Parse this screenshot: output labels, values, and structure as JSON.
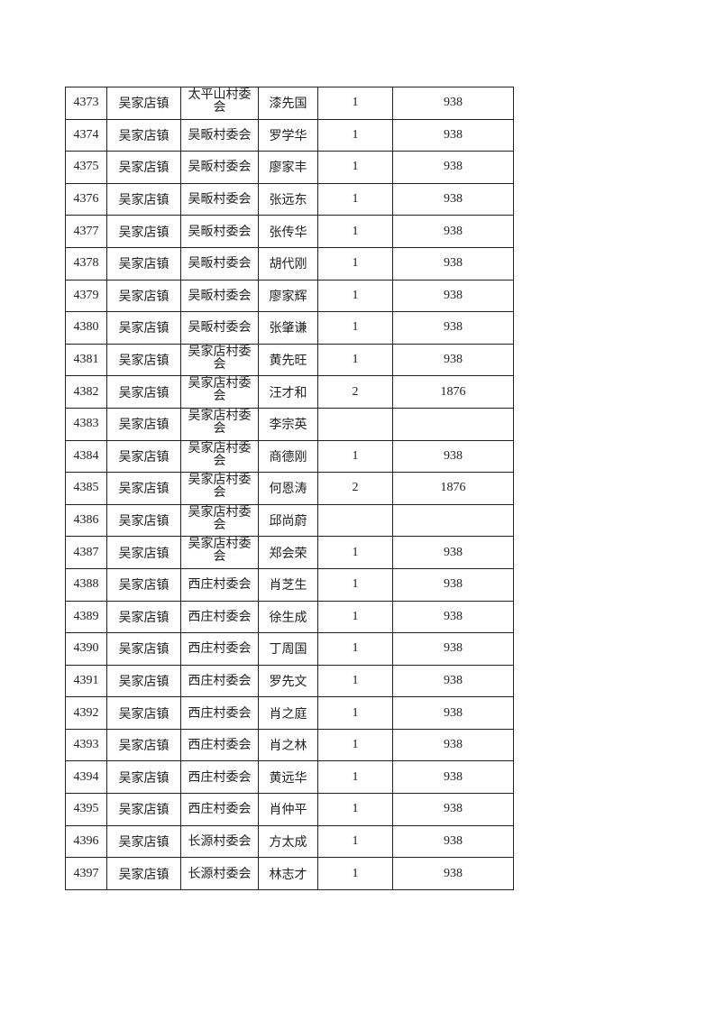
{
  "table": {
    "rows": [
      [
        "4373",
        "吴家店镇",
        "太平山村委会",
        "漆先国",
        "1",
        "938"
      ],
      [
        "4374",
        "吴家店镇",
        "吴畈村委会",
        "罗学华",
        "1",
        "938"
      ],
      [
        "4375",
        "吴家店镇",
        "吴畈村委会",
        "廖家丰",
        "1",
        "938"
      ],
      [
        "4376",
        "吴家店镇",
        "吴畈村委会",
        "张远东",
        "1",
        "938"
      ],
      [
        "4377",
        "吴家店镇",
        "吴畈村委会",
        "张传华",
        "1",
        "938"
      ],
      [
        "4378",
        "吴家店镇",
        "吴畈村委会",
        "胡代刚",
        "1",
        "938"
      ],
      [
        "4379",
        "吴家店镇",
        "吴畈村委会",
        "廖家辉",
        "1",
        "938"
      ],
      [
        "4380",
        "吴家店镇",
        "吴畈村委会",
        "张肇谦",
        "1",
        "938"
      ],
      [
        "4381",
        "吴家店镇",
        "吴家店村委会",
        "黄先旺",
        "1",
        "938"
      ],
      [
        "4382",
        "吴家店镇",
        "吴家店村委会",
        "汪才和",
        "2",
        "1876"
      ],
      [
        "4383",
        "吴家店镇",
        "吴家店村委会",
        "李宗英",
        "",
        ""
      ],
      [
        "4384",
        "吴家店镇",
        "吴家店村委会",
        "商德刚",
        "1",
        "938"
      ],
      [
        "4385",
        "吴家店镇",
        "吴家店村委会",
        "何恩涛",
        "2",
        "1876"
      ],
      [
        "4386",
        "吴家店镇",
        "吴家店村委会",
        "邱尚蔚",
        "",
        ""
      ],
      [
        "4387",
        "吴家店镇",
        "吴家店村委会",
        "郑会荣",
        "1",
        "938"
      ],
      [
        "4388",
        "吴家店镇",
        "西庄村委会",
        "肖芝生",
        "1",
        "938"
      ],
      [
        "4389",
        "吴家店镇",
        "西庄村委会",
        "徐生成",
        "1",
        "938"
      ],
      [
        "4390",
        "吴家店镇",
        "西庄村委会",
        "丁周国",
        "1",
        "938"
      ],
      [
        "4391",
        "吴家店镇",
        "西庄村委会",
        "罗先文",
        "1",
        "938"
      ],
      [
        "4392",
        "吴家店镇",
        "西庄村委会",
        "肖之庭",
        "1",
        "938"
      ],
      [
        "4393",
        "吴家店镇",
        "西庄村委会",
        "肖之林",
        "1",
        "938"
      ],
      [
        "4394",
        "吴家店镇",
        "西庄村委会",
        "黄远华",
        "1",
        "938"
      ],
      [
        "4395",
        "吴家店镇",
        "西庄村委会",
        "肖仲平",
        "1",
        "938"
      ],
      [
        "4396",
        "吴家店镇",
        "长源村委会",
        "方太成",
        "1",
        "938"
      ],
      [
        "4397",
        "吴家店镇",
        "长源村委会",
        "林志才",
        "1",
        "938"
      ]
    ]
  }
}
